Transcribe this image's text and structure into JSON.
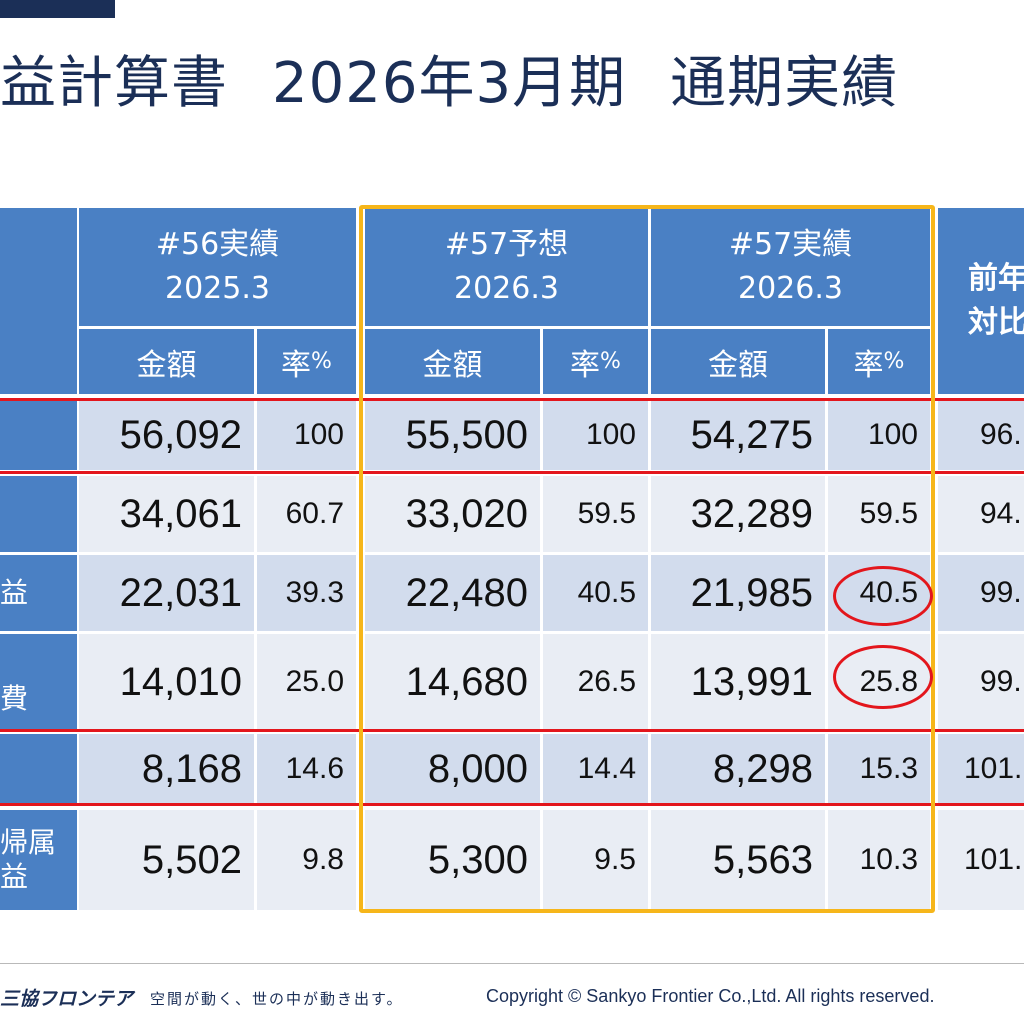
{
  "title": {
    "part1": "益計算書",
    "part2": "2026年3月期",
    "part3": "通期実績"
  },
  "table": {
    "groups": [
      {
        "line1": "#56実績",
        "line2": "2025.3"
      },
      {
        "line1": "#57予想",
        "line2": "2026.3"
      },
      {
        "line1": "#57実績",
        "line2": "2026.3"
      }
    ],
    "yoy_header": {
      "line1": "前年",
      "line2": "対比"
    },
    "sub_amount": "金額",
    "sub_rate": "率",
    "sub_rate_unit": "%",
    "rows": [
      {
        "label": "",
        "values": [
          "56,092",
          "100",
          "55,500",
          "100",
          "54,275",
          "100"
        ],
        "yoy": "96."
      },
      {
        "label": "",
        "values": [
          "34,061",
          "60.7",
          "33,020",
          "59.5",
          "32,289",
          "59.5"
        ],
        "yoy": "94."
      },
      {
        "label": "益",
        "values": [
          "22,031",
          "39.3",
          "22,480",
          "40.5",
          "21,985",
          "40.5"
        ],
        "yoy": "99."
      },
      {
        "label": "費",
        "values": [
          "14,010",
          "25.0",
          "14,680",
          "26.5",
          "13,991",
          "25.8"
        ],
        "yoy": "99."
      },
      {
        "label": "",
        "values": [
          "8,168",
          "14.6",
          "8,000",
          "14.4",
          "8,298",
          "15.3"
        ],
        "yoy": "101."
      },
      {
        "label_line1": "帰属",
        "label_line2": "益",
        "values": [
          "5,502",
          "9.8",
          "5,300",
          "9.5",
          "5,563",
          "10.3"
        ],
        "yoy": "101."
      }
    ]
  },
  "footer": {
    "logo": "三協フロンテア",
    "tagline": "空間が動く、世の中が動き出す。",
    "copyright": "Copyright © Sankyo Frontier Co.,Ltd. All rights reserved."
  },
  "colors": {
    "header_blue": "#4a80c4",
    "navy": "#1b2f57",
    "highlight_frame": "#f6b61a",
    "red_marker": "#e3161c"
  }
}
